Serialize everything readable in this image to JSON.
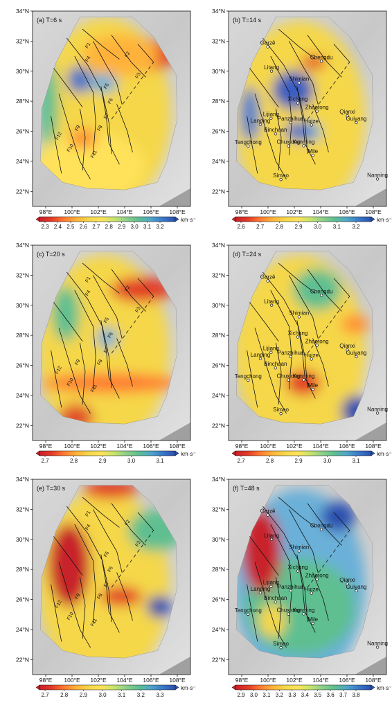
{
  "panels": [
    {
      "id": "a",
      "label": "(a) T=6 s",
      "lat_labels": [
        "34°N",
        "32°N",
        "30°N",
        "28°N",
        "26°N",
        "24°N",
        "22°N"
      ],
      "lon_labels": [
        "98°E",
        "100°E",
        "102°E",
        "104°E",
        "106°E",
        "108°E"
      ],
      "colorbar_ticks": [
        "2.3",
        "2.4",
        "2.5",
        "2.6",
        "2.7",
        "2.8",
        "2.9",
        "3.0",
        "3.1",
        "3.2"
      ],
      "unit": "km·s⁻¹",
      "fault_labels": [
        "F1",
        "F2",
        "F3",
        "F4",
        "F5",
        "F6",
        "F7",
        "F8",
        "F9",
        "F10",
        "F11",
        "F12"
      ],
      "cities": []
    },
    {
      "id": "b",
      "label": "(b) T=14 s",
      "lat_labels": [
        "34°N",
        "32°N",
        "30°N",
        "28°N",
        "26°N",
        "24°N",
        "22°N"
      ],
      "lon_labels": [
        "98°E",
        "100°E",
        "102°E",
        "104°E",
        "106°E",
        "108°E"
      ],
      "colorbar_ticks": [
        "2.6",
        "2.7",
        "2.8",
        "2.9",
        "3.0",
        "3.1",
        "3.2"
      ],
      "unit": "km·s⁻¹",
      "fault_labels": [],
      "cities": [
        "Garzê",
        "Chengdu",
        "Litang",
        "Shimian",
        "Xichang",
        "Zhaotong",
        "Qianxi",
        "Lijiang",
        "Lanping",
        "Panzhihua",
        "Huize",
        "Guiyang",
        "Binchuan",
        "Tengchong",
        "Kunming",
        "Chuxiong",
        "Mile",
        "Nanning",
        "Simao"
      ]
    },
    {
      "id": "c",
      "label": "(c) T=20 s",
      "lat_labels": [
        "34°N",
        "32°N",
        "30°N",
        "28°N",
        "26°N",
        "24°N",
        "22°N"
      ],
      "lon_labels": [
        "98°E",
        "100°E",
        "102°E",
        "104°E",
        "106°E",
        "108°E"
      ],
      "colorbar_ticks": [
        "2.7",
        "2.8",
        "2.9",
        "3.0",
        "3.1"
      ],
      "unit": "km·s⁻¹",
      "fault_labels": [
        "F1",
        "F2",
        "F3",
        "F4",
        "F5",
        "F6",
        "F7",
        "F8",
        "F9",
        "F10",
        "F11",
        "F12"
      ],
      "cities": []
    },
    {
      "id": "d",
      "label": "(d) T=24 s",
      "lat_labels": [
        "34°N",
        "32°N",
        "30°N",
        "28°N",
        "26°N",
        "24°N",
        "22°N"
      ],
      "lon_labels": [
        "98°E",
        "100°E",
        "102°E",
        "104°E",
        "106°E",
        "108°E"
      ],
      "colorbar_ticks": [
        "2.7",
        "2.8",
        "2.9",
        "3.0",
        "3.1"
      ],
      "unit": "km·s⁻¹",
      "fault_labels": [],
      "cities": [
        "Garzê",
        "Chengdu",
        "Litang",
        "Shimian",
        "Xichang",
        "Zhaotong",
        "Qianxi",
        "Lijiang",
        "Lanping",
        "Panzhihua",
        "Huize",
        "Guiyang",
        "Binchuan",
        "Tengchong",
        "Kunming",
        "Chuxiong",
        "Mile",
        "Nanning",
        "Simao"
      ]
    },
    {
      "id": "e",
      "label": "(e) T=30 s",
      "lat_labels": [
        "34°N",
        "32°N",
        "30°N",
        "28°N",
        "26°N",
        "24°N",
        "22°N"
      ],
      "lon_labels": [
        "98°E",
        "100°E",
        "102°E",
        "104°E",
        "106°E",
        "108°E"
      ],
      "colorbar_ticks": [
        "2.7",
        "2.8",
        "2.9",
        "3.0",
        "3.1",
        "3.2",
        "3.3"
      ],
      "unit": "km·s⁻¹",
      "fault_labels": [
        "F1",
        "F2",
        "F3",
        "F4",
        "F5",
        "F6",
        "F7",
        "F8",
        "F9",
        "F10",
        "F11",
        "F12"
      ],
      "cities": []
    },
    {
      "id": "f",
      "label": "(f) T=48 s",
      "lat_labels": [
        "34°N",
        "32°N",
        "30°N",
        "28°N",
        "26°N",
        "24°N",
        "22°N"
      ],
      "lon_labels": [
        "98°E",
        "100°E",
        "102°E",
        "104°E",
        "106°E",
        "108°E"
      ],
      "colorbar_ticks": [
        "2.9",
        "3.0",
        "3.1",
        "3.2",
        "3.3",
        "3.4",
        "3.5",
        "3.6",
        "3.7",
        "3.8"
      ],
      "unit": "km·s⁻¹",
      "fault_labels": [],
      "cities": [
        "Garzê",
        "Chengdu",
        "Litang",
        "Shimian",
        "Xichang",
        "Zhaotong",
        "Qianxi",
        "Lijiang",
        "Lanping",
        "Panzhihua",
        "Huize",
        "Guiyang",
        "Binchuan",
        "Tengchong",
        "Kunming",
        "Chuxiong",
        "Mile",
        "Nanning",
        "Simao"
      ]
    }
  ]
}
